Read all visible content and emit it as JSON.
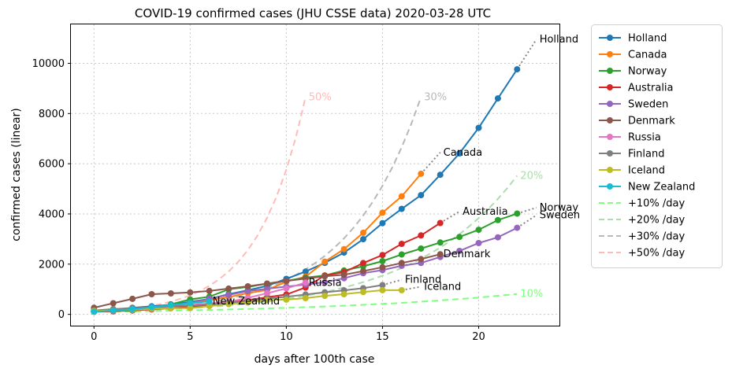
{
  "chart_data": {
    "type": "line",
    "title": "COVID-19 confirmed cases (JHU CSSE data) 2020-03-28 UTC",
    "xlabel": "days after 100th case",
    "ylabel": "confirmed cases (linear)",
    "xlim": [
      -1.2,
      24.2
    ],
    "ylim": [
      -450,
      11550
    ],
    "xticks": [
      0,
      5,
      10,
      15,
      20
    ],
    "yticks": [
      0,
      2000,
      4000,
      6000,
      8000,
      10000
    ],
    "grid": true,
    "legend_placement": "outside right, top",
    "series": [
      {
        "name": "Holland",
        "color": "#1f77b4",
        "x": [
          0,
          1,
          2,
          3,
          4,
          5,
          6,
          7,
          8,
          9,
          10,
          11,
          12,
          13,
          14,
          15,
          16,
          17,
          18,
          19,
          20,
          21,
          22
        ],
        "y": [
          128,
          188,
          265,
          321,
          382,
          503,
          614,
          804,
          959,
          1135,
          1413,
          1705,
          2051,
          2460,
          2994,
          3631,
          4204,
          4749,
          5560,
          6412,
          7431,
          8603,
          9762
        ],
        "label": "Holland",
        "forecast": [
          [
            22,
            9762
          ],
          [
            23,
            10950
          ]
        ]
      },
      {
        "name": "Canada",
        "color": "#ff7f0e",
        "x": [
          0,
          1,
          2,
          3,
          4,
          5,
          6,
          7,
          8,
          9,
          10,
          11,
          12,
          13,
          14,
          15,
          16,
          17
        ],
        "y": [
          103,
          117,
          176,
          244,
          304,
          424,
          569,
          690,
          846,
          971,
          1300,
          1500,
          2100,
          2600,
          3250,
          4050,
          4700,
          5600
        ],
        "label": "Canada",
        "forecast": [
          [
            17,
            5600
          ],
          [
            18,
            6450
          ]
        ]
      },
      {
        "name": "Norway",
        "color": "#2ca02c",
        "x": [
          0,
          1,
          2,
          3,
          4,
          5,
          6,
          7,
          8,
          9,
          10,
          11,
          12,
          13,
          14,
          15,
          16,
          17,
          18,
          19,
          20,
          21,
          22
        ],
        "y": [
          113,
          147,
          176,
          205,
          400,
          598,
          702,
          996,
          1090,
          1221,
          1333,
          1463,
          1550,
          1746,
          1914,
          2118,
          2385,
          2621,
          2863,
          3084,
          3369,
          3755,
          4015
        ],
        "label": "Norway",
        "forecast": [
          [
            22,
            4015
          ],
          [
            23,
            4250
          ]
        ]
      },
      {
        "name": "Australia",
        "color": "#d62728",
        "x": [
          0,
          1,
          2,
          3,
          4,
          5,
          6,
          7,
          8,
          9,
          10,
          11,
          12,
          13,
          14,
          15,
          16,
          17,
          18
        ],
        "y": [
          112,
          127,
          156,
          197,
          250,
          297,
          377,
          452,
          568,
          681,
          791,
          1071,
          1549,
          1682,
          2044,
          2364,
          2810,
          3143,
          3640
        ],
        "label": "Australia",
        "forecast": [
          [
            18,
            3640
          ],
          [
            19,
            4100
          ]
        ]
      },
      {
        "name": "Sweden",
        "color": "#9467bd",
        "x": [
          0,
          1,
          2,
          3,
          4,
          5,
          6,
          7,
          8,
          9,
          10,
          11,
          12,
          13,
          14,
          15,
          16,
          17,
          18,
          19,
          20,
          21,
          22
        ],
        "y": [
          137,
          161,
          203,
          248,
          326,
          461,
          620,
          775,
          924,
          1022,
          1103,
          1190,
          1279,
          1439,
          1639,
          1763,
          1934,
          2046,
          2286,
          2526,
          2840,
          3069,
          3447
        ],
        "label": "Sweden",
        "forecast": [
          [
            22,
            3447
          ],
          [
            23,
            3950
          ]
        ]
      },
      {
        "name": "Denmark",
        "color": "#8c564b",
        "x": [
          0,
          1,
          2,
          3,
          4,
          5,
          6,
          7,
          8,
          9,
          10,
          11,
          12,
          13,
          14,
          15,
          16,
          17,
          18
        ],
        "y": [
          264,
          444,
          617,
          804,
          836,
          875,
          933,
          1025,
          1116,
          1225,
          1337,
          1420,
          1514,
          1577,
          1724,
          1877,
          2046,
          2201,
          2395
        ],
        "label": "Denmark",
        "forecast": []
      },
      {
        "name": "Russia",
        "color": "#e377c2",
        "x": [
          0,
          1,
          2,
          3,
          4,
          5,
          6,
          7,
          8,
          9,
          10,
          11
        ],
        "y": [
          114,
          147,
          199,
          253,
          306,
          367,
          438,
          495,
          658,
          840,
          1036,
          1264
        ],
        "label": "Russia",
        "forecast": []
      },
      {
        "name": "Finland",
        "color": "#7f7f7f",
        "x": [
          0,
          1,
          2,
          3,
          4,
          5,
          6,
          7,
          8,
          9,
          10,
          11,
          12,
          13,
          14,
          15
        ],
        "y": [
          155,
          210,
          244,
          277,
          321,
          336,
          400,
          450,
          523,
          626,
          700,
          792,
          880,
          958,
          1041,
          1167
        ],
        "label": "Finland",
        "forecast": [
          [
            15,
            1167
          ],
          [
            16,
            1380
          ]
        ]
      },
      {
        "name": "Iceland",
        "color": "#bcbd22",
        "x": [
          0,
          1,
          2,
          3,
          4,
          5,
          6,
          7,
          8,
          9,
          10,
          11,
          12,
          13,
          14,
          15,
          16
        ],
        "y": [
          134,
          156,
          180,
          220,
          250,
          250,
          330,
          409,
          473,
          568,
          588,
          648,
          737,
          802,
          890,
          963,
          963
        ],
        "label": "Iceland",
        "forecast": [
          [
            16,
            963
          ],
          [
            17,
            1100
          ]
        ]
      },
      {
        "name": "New Zealand",
        "color": "#17becf",
        "x": [
          0,
          1,
          2,
          3,
          4,
          5,
          6
        ],
        "y": [
          102,
          155,
          205,
          283,
          368,
          451,
          514
        ],
        "label": "New Zealand",
        "forecast": []
      }
    ],
    "reference_lines": [
      {
        "name": "+10% /day",
        "color": "#7fff7f",
        "label": "10%",
        "rate": 0.1,
        "x_end": 22
      },
      {
        "name": "+20% /day",
        "color": "#aadeaa",
        "label": "20%",
        "rate": 0.2,
        "x_end": 22
      },
      {
        "name": "+30% /day",
        "color": "#b8b8b8",
        "label": "30%",
        "rate": 0.3,
        "x_end": 17
      },
      {
        "name": "+50% /day",
        "color": "#ffbbb8",
        "label": "50%",
        "rate": 0.5,
        "x_end": 11
      }
    ],
    "reference_start": 100
  }
}
